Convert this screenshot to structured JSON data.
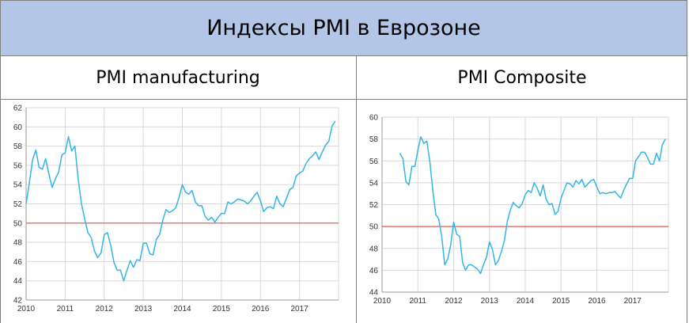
{
  "header": {
    "title": "Индексы PMI в Еврозоне"
  },
  "colors": {
    "line": "#33b5e5",
    "reference": "#e05a50",
    "grid": "#d9d9d9",
    "header_bg": "#b4c6e7"
  },
  "panels": [
    {
      "title": "PMI manufacturing"
    },
    {
      "title": "PMI Composite"
    }
  ],
  "chart_data": [
    {
      "type": "line",
      "title": "PMI manufacturing",
      "xlabel": "",
      "ylabel": "",
      "xlim": [
        2010,
        2018
      ],
      "ylim": [
        42,
        62
      ],
      "x_ticks": [
        2010,
        2011,
        2012,
        2013,
        2014,
        2015,
        2016,
        2017
      ],
      "y_ticks": [
        42,
        44,
        46,
        48,
        50,
        52,
        54,
        56,
        58,
        60,
        62
      ],
      "grid": true,
      "reference_line": 50,
      "series": [
        {
          "x": [
            2010.0,
            2010.083,
            2010.167,
            2010.25,
            2010.333,
            2010.417,
            2010.5,
            2010.583,
            2010.667,
            2010.75,
            2010.833,
            2010.917,
            2011.0,
            2011.083,
            2011.167,
            2011.25,
            2011.333,
            2011.417,
            2011.5,
            2011.583,
            2011.667,
            2011.75,
            2011.833,
            2011.917,
            2012.0,
            2012.083,
            2012.167,
            2012.25,
            2012.333,
            2012.417,
            2012.5,
            2012.583,
            2012.667,
            2012.75,
            2012.833,
            2012.917,
            2013.0,
            2013.083,
            2013.167,
            2013.25,
            2013.333,
            2013.417,
            2013.5,
            2013.583,
            2013.667,
            2013.75,
            2013.833,
            2013.917,
            2014.0,
            2014.083,
            2014.167,
            2014.25,
            2014.333,
            2014.417,
            2014.5,
            2014.583,
            2014.667,
            2014.75,
            2014.833,
            2014.917,
            2015.0,
            2015.083,
            2015.167,
            2015.25,
            2015.333,
            2015.417,
            2015.5,
            2015.583,
            2015.667,
            2015.75,
            2015.833,
            2015.917,
            2016.0,
            2016.083,
            2016.167,
            2016.25,
            2016.333,
            2016.417,
            2016.5,
            2016.583,
            2016.667,
            2016.75,
            2016.833,
            2016.917,
            2017.0,
            2017.083,
            2017.167,
            2017.25,
            2017.333,
            2017.417,
            2017.5,
            2017.583,
            2017.667,
            2017.75,
            2017.833,
            2017.917
          ],
          "values": [
            52.0,
            54.2,
            56.6,
            57.6,
            55.8,
            55.6,
            56.7,
            55.1,
            53.7,
            54.6,
            55.3,
            57.1,
            57.3,
            59.0,
            57.5,
            58.0,
            54.6,
            52.0,
            50.4,
            49.0,
            48.5,
            47.1,
            46.4,
            46.9,
            48.8,
            49.0,
            47.7,
            45.9,
            45.1,
            45.1,
            44.0,
            45.1,
            46.1,
            45.4,
            46.2,
            46.1,
            47.9,
            47.9,
            46.8,
            46.7,
            48.3,
            48.8,
            50.3,
            51.4,
            51.1,
            51.3,
            51.6,
            52.7,
            54.0,
            53.2,
            53.0,
            53.4,
            52.2,
            51.8,
            51.8,
            50.7,
            50.3,
            50.6,
            50.1,
            50.6,
            51.0,
            51.0,
            52.2,
            52.0,
            52.2,
            52.5,
            52.4,
            52.3,
            52.0,
            52.3,
            52.8,
            53.2,
            52.3,
            51.2,
            51.6,
            51.7,
            51.5,
            52.8,
            52.0,
            51.7,
            52.6,
            53.5,
            53.7,
            54.9,
            55.2,
            55.4,
            56.2,
            56.7,
            57.0,
            57.4,
            56.6,
            57.4,
            58.1,
            58.5,
            60.1,
            60.6
          ]
        }
      ]
    },
    {
      "type": "line",
      "title": "PMI Composite",
      "xlabel": "",
      "ylabel": "",
      "xlim": [
        2010,
        2018
      ],
      "ylim": [
        44,
        60
      ],
      "x_ticks": [
        2010,
        2011,
        2012,
        2013,
        2014,
        2015,
        2016,
        2017
      ],
      "y_ticks": [
        44,
        46,
        48,
        50,
        52,
        54,
        56,
        58,
        60
      ],
      "grid": true,
      "reference_line": 50,
      "series": [
        {
          "x": [
            2010.5,
            2010.583,
            2010.667,
            2010.75,
            2010.833,
            2010.917,
            2011.0,
            2011.083,
            2011.167,
            2011.25,
            2011.333,
            2011.417,
            2011.5,
            2011.583,
            2011.667,
            2011.75,
            2011.833,
            2011.917,
            2012.0,
            2012.083,
            2012.167,
            2012.25,
            2012.333,
            2012.417,
            2012.5,
            2012.583,
            2012.667,
            2012.75,
            2012.833,
            2012.917,
            2013.0,
            2013.083,
            2013.167,
            2013.25,
            2013.333,
            2013.417,
            2013.5,
            2013.583,
            2013.667,
            2013.75,
            2013.833,
            2013.917,
            2014.0,
            2014.083,
            2014.167,
            2014.25,
            2014.333,
            2014.417,
            2014.5,
            2014.583,
            2014.667,
            2014.75,
            2014.833,
            2014.917,
            2015.0,
            2015.083,
            2015.167,
            2015.25,
            2015.333,
            2015.417,
            2015.5,
            2015.583,
            2015.667,
            2015.75,
            2015.833,
            2015.917,
            2016.0,
            2016.083,
            2016.167,
            2016.25,
            2016.333,
            2016.417,
            2016.5,
            2016.583,
            2016.667,
            2016.75,
            2016.833,
            2016.917,
            2017.0,
            2017.083,
            2017.167,
            2017.25,
            2017.333,
            2017.417,
            2017.5,
            2017.583,
            2017.667,
            2017.75,
            2017.833,
            2017.917
          ],
          "values": [
            56.7,
            56.2,
            54.1,
            53.8,
            55.5,
            55.5,
            57.0,
            58.2,
            57.6,
            57.8,
            56.0,
            53.3,
            51.1,
            50.7,
            49.1,
            46.5,
            47.0,
            48.3,
            50.4,
            49.3,
            49.1,
            46.7,
            46.0,
            46.5,
            46.5,
            46.3,
            46.1,
            45.7,
            46.5,
            47.2,
            48.6,
            47.9,
            46.5,
            46.9,
            47.7,
            48.7,
            50.5,
            51.5,
            52.2,
            51.9,
            51.7,
            52.1,
            52.9,
            53.3,
            53.1,
            54.0,
            53.5,
            52.8,
            53.8,
            52.5,
            52.0,
            52.1,
            51.1,
            51.4,
            52.6,
            53.3,
            54.0,
            53.9,
            53.6,
            54.2,
            53.9,
            54.3,
            53.6,
            53.9,
            54.2,
            54.3,
            53.6,
            53.0,
            53.1,
            53.0,
            53.1,
            53.1,
            53.2,
            52.9,
            52.6,
            53.3,
            53.9,
            54.4,
            54.4,
            56.0,
            56.4,
            56.8,
            56.8,
            56.3,
            55.7,
            55.7,
            56.7,
            56.0,
            57.5,
            58.0
          ]
        }
      ]
    }
  ]
}
